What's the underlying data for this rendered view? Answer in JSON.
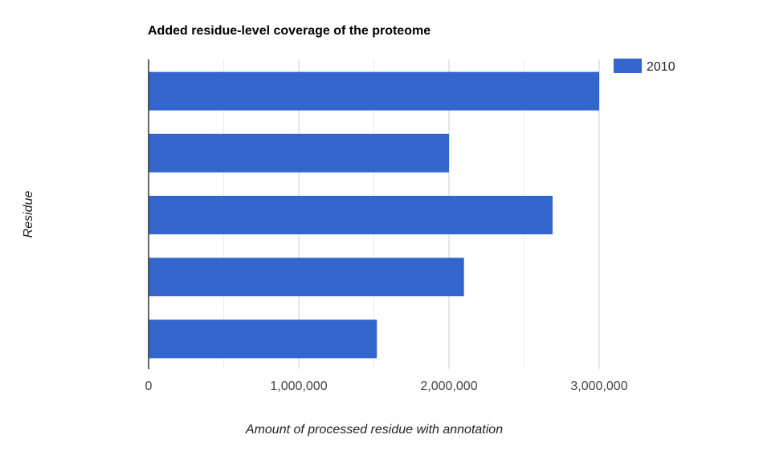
{
  "chart_data": {
    "type": "bar",
    "orientation": "horizontal",
    "title": "Added residue-level coverage of the proteome",
    "xlabel": "Amount of processed residue with annotation",
    "ylabel": "Residue",
    "categories": [
      "",
      "",
      "",
      "",
      ""
    ],
    "series": [
      {
        "name": "2010",
        "values": [
          3000000,
          2000000,
          2690000,
          2100000,
          1520000
        ]
      }
    ],
    "xlim": [
      0,
      3000000
    ],
    "x_ticks": [
      0,
      1000000,
      2000000,
      3000000
    ],
    "x_tick_labels": [
      "0",
      "1,000,000",
      "2,000,000",
      "3,000,000"
    ],
    "grid": true,
    "legend_position": "top-right",
    "colors": {
      "series": "#3366cc",
      "grid_major": "#cccccc",
      "grid_minor": "#ebebeb",
      "axis": "#333333",
      "tick_text": "#444444"
    }
  }
}
